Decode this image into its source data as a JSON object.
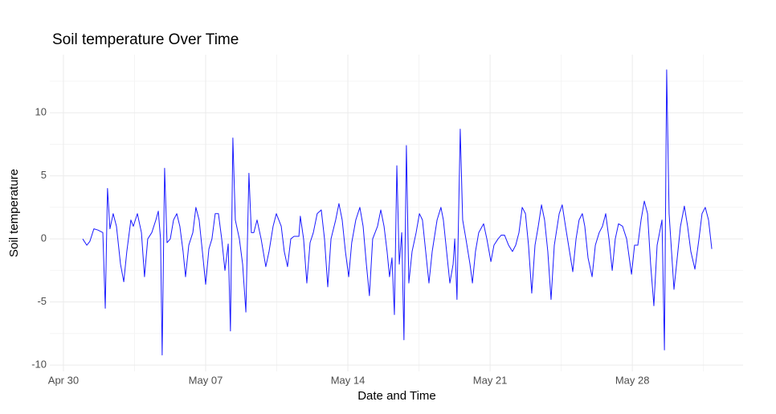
{
  "chart_data": {
    "type": "line",
    "title": "Soil temperature Over Time",
    "x_label": "Date and Time",
    "y_label": "Soil temperature",
    "color": "#1a1aff",
    "grid": true,
    "xlim": [
      -0.67,
      33.45
    ],
    "ylim": [
      -10.5,
      14.6
    ],
    "xticks": [
      {
        "value": 0,
        "label": "Apr 30"
      },
      {
        "value": 7,
        "label": "May 07"
      },
      {
        "value": 14,
        "label": "May 14"
      },
      {
        "value": 21,
        "label": "May 21"
      },
      {
        "value": 28,
        "label": "May 28"
      }
    ],
    "yticks": [
      -10,
      -5,
      0,
      5,
      10
    ],
    "x": [
      0.95,
      1.15,
      1.3,
      1.5,
      1.7,
      1.94,
      2.06,
      2.17,
      2.29,
      2.45,
      2.61,
      2.81,
      2.97,
      3.12,
      3.32,
      3.44,
      3.64,
      3.84,
      3.99,
      4.15,
      4.35,
      4.55,
      4.67,
      4.78,
      4.86,
      4.98,
      5.1,
      5.26,
      5.42,
      5.58,
      5.73,
      5.89,
      6.01,
      6.17,
      6.37,
      6.52,
      6.68,
      6.84,
      7.0,
      7.16,
      7.31,
      7.47,
      7.63,
      7.79,
      7.95,
      8.11,
      8.22,
      8.34,
      8.46,
      8.66,
      8.82,
      8.98,
      9.13,
      9.25,
      9.37,
      9.53,
      9.73,
      9.96,
      10.12,
      10.32,
      10.48,
      10.72,
      10.87,
      11.03,
      11.19,
      11.35,
      11.59,
      11.66,
      11.82,
      11.98,
      12.14,
      12.3,
      12.49,
      12.69,
      12.85,
      13.01,
      13.17,
      13.4,
      13.56,
      13.72,
      13.88,
      14.04,
      14.19,
      14.39,
      14.59,
      14.75,
      14.91,
      15.06,
      15.22,
      15.46,
      15.62,
      15.78,
      15.93,
      16.05,
      16.17,
      16.29,
      16.41,
      16.53,
      16.65,
      16.76,
      16.88,
      17.0,
      17.16,
      17.36,
      17.52,
      17.67,
      17.83,
      17.99,
      18.15,
      18.39,
      18.58,
      18.7,
      18.86,
      19.02,
      19.18,
      19.26,
      19.37,
      19.53,
      19.65,
      19.81,
      20.01,
      20.13,
      20.28,
      20.44,
      20.68,
      20.84,
      21.04,
      21.19,
      21.39,
      21.55,
      21.71,
      21.91,
      22.1,
      22.26,
      22.42,
      22.58,
      22.74,
      22.89,
      23.05,
      23.21,
      23.37,
      23.53,
      23.68,
      23.84,
      24.0,
      24.16,
      24.4,
      24.55,
      24.71,
      24.91,
      25.07,
      25.23,
      25.38,
      25.54,
      25.66,
      25.82,
      26.02,
      26.18,
      26.37,
      26.53,
      26.69,
      26.85,
      27.01,
      27.16,
      27.32,
      27.52,
      27.72,
      27.96,
      28.11,
      28.27,
      28.43,
      28.59,
      28.75,
      28.9,
      29.06,
      29.22,
      29.34,
      29.46,
      29.58,
      29.69,
      29.81,
      29.93,
      30.05,
      30.21,
      30.37,
      30.56,
      30.72,
      30.88,
      31.08,
      31.28,
      31.43,
      31.59,
      31.75,
      31.91
    ],
    "values": [
      0,
      -0.5,
      -0.2,
      0.8,
      0.7,
      0.5,
      -5.5,
      4,
      0.8,
      2,
      1,
      -2,
      -3.4,
      -1,
      1.5,
      1,
      2,
      0.5,
      -3,
      0,
      0.5,
      1.5,
      2.2,
      0,
      -9.2,
      5.6,
      -0.3,
      0,
      1.5,
      2,
      1,
      -1,
      -3,
      -0.5,
      0.5,
      2.5,
      1.5,
      -1,
      -3.6,
      -0.8,
      0,
      2,
      2,
      0,
      -2.5,
      -0.4,
      -7.3,
      8,
      1.5,
      0,
      -2,
      -5.8,
      5.2,
      0.5,
      0.5,
      1.5,
      0,
      -2.2,
      -1,
      1,
      2,
      1,
      -1,
      -2.2,
      0,
      0.2,
      0.2,
      1.8,
      0,
      -3.5,
      -0.3,
      0.5,
      2,
      2.3,
      0,
      -3.8,
      0,
      1.5,
      2.8,
      1.5,
      -1,
      -3,
      -0.3,
      1.5,
      2.5,
      1,
      -2,
      -4.5,
      0,
      1,
      2.3,
      1,
      -1,
      -3,
      -1.5,
      -6,
      5.8,
      -2,
      0.5,
      -8,
      7.4,
      -3.5,
      -1,
      0.5,
      2,
      1.5,
      -1,
      -3.5,
      -1,
      1.5,
      2.5,
      1.5,
      -1,
      -3.5,
      -2,
      0,
      -4.8,
      8.7,
      1.5,
      0,
      -2,
      -3.5,
      -1,
      0.5,
      1.2,
      0,
      -1.8,
      -0.5,
      0,
      0.3,
      0.3,
      -0.5,
      -1,
      -0.5,
      0.5,
      2.5,
      2,
      -0.5,
      -4.3,
      -0.5,
      1,
      2.7,
      1.5,
      -1,
      -4.8,
      -0.5,
      2,
      2.7,
      1,
      -1,
      -2.6,
      0,
      1.5,
      2,
      1,
      -1.5,
      -3,
      -0.5,
      0.5,
      1,
      2,
      0,
      -2.5,
      0,
      1.2,
      1,
      0,
      -2.8,
      -0.5,
      -0.5,
      1.5,
      3,
      2,
      -2,
      -5.3,
      -0.5,
      0.5,
      1.5,
      -8.8,
      13.4,
      2,
      -1,
      -4,
      -1.5,
      1,
      2.6,
      1,
      -1,
      -2.4,
      0,
      2,
      2.5,
      1.5,
      -0.8
    ]
  }
}
